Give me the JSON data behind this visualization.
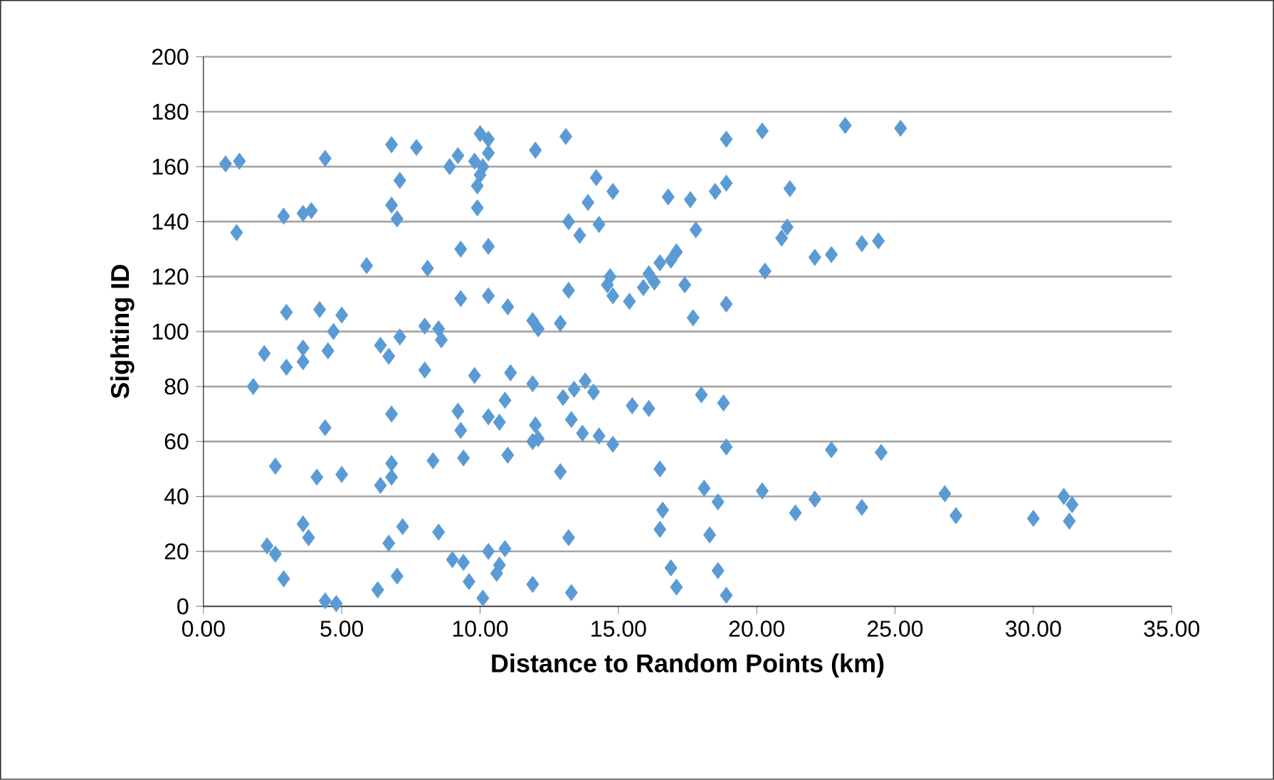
{
  "chart_data": {
    "type": "scatter",
    "xlabel": "Distance to Random Points (km)",
    "ylabel": "Sighting ID",
    "color": "#5b9bd5",
    "marker": "diamond",
    "grid": "y",
    "xlim": [
      0,
      35
    ],
    "ylim": [
      0,
      200
    ],
    "xticks": [
      {
        "value": 0,
        "label": "0.00"
      },
      {
        "value": 5,
        "label": "5.00"
      },
      {
        "value": 10,
        "label": "10.00"
      },
      {
        "value": 15,
        "label": "15.00"
      },
      {
        "value": 20,
        "label": "20.00"
      },
      {
        "value": 25,
        "label": "25.00"
      },
      {
        "value": 30,
        "label": "30.00"
      },
      {
        "value": 35,
        "label": "35.00"
      }
    ],
    "yticks": [
      0,
      20,
      40,
      60,
      80,
      100,
      120,
      140,
      160,
      180,
      200
    ],
    "x": [
      0.8,
      1.3,
      4.4,
      6.8,
      7.7,
      9.2,
      9.8,
      10.0,
      10.3,
      10.3,
      10.1,
      10.0,
      9.9,
      12.0,
      13.1,
      8.9,
      7.1,
      20.2,
      23.2,
      25.2,
      18.9,
      14.2,
      14.8,
      17.6,
      16.8,
      18.5,
      18.9,
      21.2,
      1.2,
      2.9,
      3.6,
      3.9,
      6.8,
      7.0,
      9.9,
      13.2,
      14.3,
      13.9,
      13.6,
      17.8,
      21.1,
      20.9,
      23.8,
      24.4,
      22.1,
      22.7,
      20.3,
      5.9,
      8.1,
      9.3,
      10.3,
      16.5,
      16.9,
      17.1,
      16.1,
      16.3,
      15.9,
      14.7,
      14.6,
      14.8,
      15.4,
      17.4,
      17.7,
      18.9,
      3.0,
      4.2,
      5.0,
      4.7,
      8.0,
      8.5,
      8.6,
      9.3,
      10.3,
      11.0,
      11.9,
      12.1,
      12.9,
      13.2,
      6.4,
      6.7,
      7.1,
      4.5,
      3.6,
      3.6,
      3.0,
      2.2,
      1.8,
      8.0,
      9.8,
      11.1,
      11.9,
      13.0,
      13.4,
      13.8,
      14.1,
      15.5,
      16.1,
      18.0,
      18.8,
      4.4,
      6.8,
      9.2,
      9.3,
      10.3,
      10.7,
      10.9,
      11.9,
      12.0,
      12.1,
      13.3,
      13.7,
      14.3,
      14.8,
      16.5,
      18.9,
      22.7,
      24.5,
      2.6,
      4.1,
      5.0,
      6.4,
      6.8,
      6.8,
      8.3,
      9.4,
      11.0,
      12.9,
      18.1,
      18.6,
      20.2,
      21.4,
      22.1,
      23.8,
      26.8,
      27.2,
      30.0,
      31.1,
      31.4,
      31.3,
      16.6,
      2.3,
      2.6,
      2.9,
      3.6,
      3.8,
      6.7,
      7.0,
      7.2,
      8.5,
      9.0,
      9.4,
      9.6,
      10.1,
      10.3,
      10.6,
      10.7,
      10.9,
      11.9,
      13.2,
      13.3,
      16.5,
      16.9,
      17.1,
      18.3,
      18.6,
      18.9,
      4.4,
      4.8,
      6.3
    ],
    "values": [
      161,
      162,
      163,
      168,
      167,
      164,
      162,
      172,
      170,
      165,
      160,
      157,
      153,
      166,
      171,
      160,
      155,
      173,
      175,
      174,
      170,
      156,
      151,
      148,
      149,
      151,
      154,
      152,
      136,
      142,
      143,
      144,
      146,
      141,
      145,
      140,
      139,
      147,
      135,
      137,
      138,
      134,
      132,
      133,
      127,
      128,
      122,
      124,
      123,
      130,
      131,
      125,
      126,
      129,
      121,
      118,
      116,
      120,
      117,
      113,
      111,
      117,
      105,
      110,
      107,
      108,
      106,
      100,
      102,
      101,
      97,
      112,
      113,
      109,
      104,
      101,
      103,
      115,
      95,
      91,
      98,
      93,
      94,
      89,
      87,
      92,
      80,
      86,
      84,
      85,
      81,
      76,
      79,
      82,
      78,
      73,
      72,
      77,
      74,
      65,
      70,
      71,
      64,
      69,
      67,
      75,
      60,
      66,
      61,
      68,
      63,
      62,
      59,
      50,
      58,
      57,
      56,
      51,
      47,
      48,
      44,
      47,
      52,
      53,
      54,
      55,
      49,
      43,
      38,
      42,
      34,
      39,
      36,
      41,
      33,
      32,
      40,
      37,
      31,
      35,
      22,
      19,
      10,
      30,
      25,
      23,
      11,
      29,
      27,
      17,
      16,
      9,
      3,
      20,
      12,
      15,
      21,
      8,
      25,
      5,
      28,
      14,
      7,
      26,
      13,
      4,
      2,
      1,
      6
    ]
  }
}
